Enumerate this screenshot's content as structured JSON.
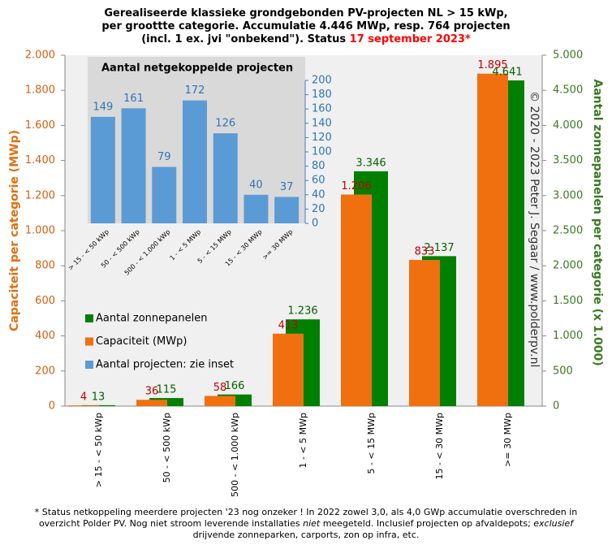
{
  "chart_data": [
    {
      "type": "bar",
      "title_lines": [
        "Gerealiseerde klassieke grondgebonden PV-projecten NL > 15 kWp,",
        "per groottte categorie. Accumulatie 4.446 MWp, resp. 764 projecten",
        "(incl. 1 ex. jvi \"onbekend\"). Status "
      ],
      "title_date": "17 september 2023*",
      "title_date_color": "#ff0000",
      "y_label": "Capaciteit per categorie (MWp)",
      "y2_label": "Aantal zonnepanelen per categorie (x 1.000)",
      "copyright": "© 2020 - 2023 Peter J. Segaar / www.polderpv.nl",
      "categories": [
        "> 15 - < 50 kWp",
        "50 - < 500 kWp",
        "500 - < 1.000 kWp",
        "1 - < 5 MWp",
        "5 - < 15 MWp",
        "15 - < 30 MWp",
        ">= 30 MWp"
      ],
      "series": [
        {
          "name": "Aantal zonnepanelen",
          "color": "#008000",
          "label_color": "#006400",
          "axis": "y2",
          "values": [
            13,
            115,
            166,
            1236,
            3346,
            2137,
            4641
          ],
          "value_labels": [
            "13",
            "115",
            "166",
            "1.236",
            "3.346",
            "2.137",
            "4.641"
          ]
        },
        {
          "name": "Capaciteit (MWp)",
          "color": "#f07010",
          "label_color": "#c00000",
          "values": [
            4,
            36,
            58,
            413,
            1206,
            833,
            1895
          ],
          "value_labels": [
            "4",
            "36",
            "58",
            "413",
            "1.206",
            "833",
            "1.895"
          ]
        }
      ],
      "ylim": [
        0,
        2000
      ],
      "yticks": [
        0,
        200,
        400,
        600,
        800,
        {
          "value": 1000,
          "label": "1.000"
        },
        {
          "value": 1200,
          "label": "1.200"
        },
        {
          "value": 1400,
          "label": "1.400"
        },
        {
          "value": 1600,
          "label": "1.600"
        },
        {
          "value": 1800,
          "label": "1.800"
        },
        {
          "value": 2000,
          "label": "2.000"
        }
      ],
      "y2lim": [
        0,
        5000
      ],
      "y2ticks": [
        0,
        500,
        {
          "value": 1000,
          "label": "1.000"
        },
        {
          "value": 1500,
          "label": "1.500"
        },
        {
          "value": 2000,
          "label": "2.000"
        },
        {
          "value": 2500,
          "label": "2.500"
        },
        {
          "value": 3000,
          "label": "3.000"
        },
        {
          "value": 3500,
          "label": "3.500"
        },
        {
          "value": 4000,
          "label": "4.000"
        },
        {
          "value": 4500,
          "label": "4.500"
        },
        {
          "value": 5000,
          "label": "5.000"
        }
      ],
      "footnote": [
        {
          "text": "* Status netkoppeling meerdere projecten '23 nog onzeker ! In 2022 zowel 3,0, als 4,0 GWp accumulatie overschreden in overzicht Polder PV. Nog niet stroom leverende installaties "
        },
        {
          "text": "niet",
          "italic": true
        },
        {
          "text": " meegeteld. Inclusief projecten op afvaldepots; "
        },
        {
          "text": "exclusief",
          "italic": true
        },
        {
          "text": " drijvende zonneparken, carports, zon op infra, etc."
        }
      ]
    },
    {
      "type": "bar",
      "title": "Aantal netgekoppelde projecten",
      "series_name": "Aantal projecten: zie inset",
      "categories": [
        "> 15 - < 50 kWp",
        "50 - < 500 kWp",
        "500 - < 1.000 kWp",
        "1 - < 5 MWp",
        "5 - < 15 MWp",
        "15 - < 30 MWp",
        ">= 30 MWp"
      ],
      "values": [
        149,
        161,
        79,
        172,
        126,
        40,
        37
      ],
      "color": "#5b9bd5",
      "label_color": "#2e75b6",
      "ylim": [
        0,
        200
      ],
      "yticks": [
        0,
        20,
        40,
        60,
        80,
        100,
        120,
        140,
        160,
        180,
        200
      ]
    }
  ]
}
